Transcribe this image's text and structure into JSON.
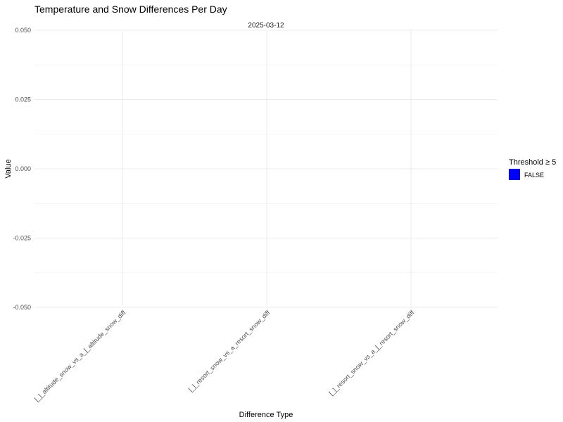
{
  "chart_data": {
    "type": "bar",
    "title": "Temperature and Snow Differences Per Day",
    "facet_label": "2025-03-12",
    "xlabel": "Difference Type",
    "ylabel": "Value",
    "categories": [
      "[_]_altitude_snow_vs_a_[_altitude_snow_diff",
      "[_]_resort_snow_vs_a_resort_snow_diff",
      "[_]_resort_snow_vs_a_[_resort_snow_diff"
    ],
    "values": [
      0,
      0,
      0
    ],
    "ylim": [
      -0.05,
      0.05
    ],
    "yticks": [
      0.05,
      0.025,
      0,
      -0.025,
      -0.05
    ],
    "ytick_labels": [
      "0.050",
      "0.025",
      "0.000",
      "-0.025",
      "-0.050"
    ],
    "grid": true,
    "legend": {
      "title": "Threshold ≥ 5",
      "position": "right",
      "entries": [
        {
          "label": "FALSE",
          "color": "#0000ff"
        }
      ]
    }
  }
}
